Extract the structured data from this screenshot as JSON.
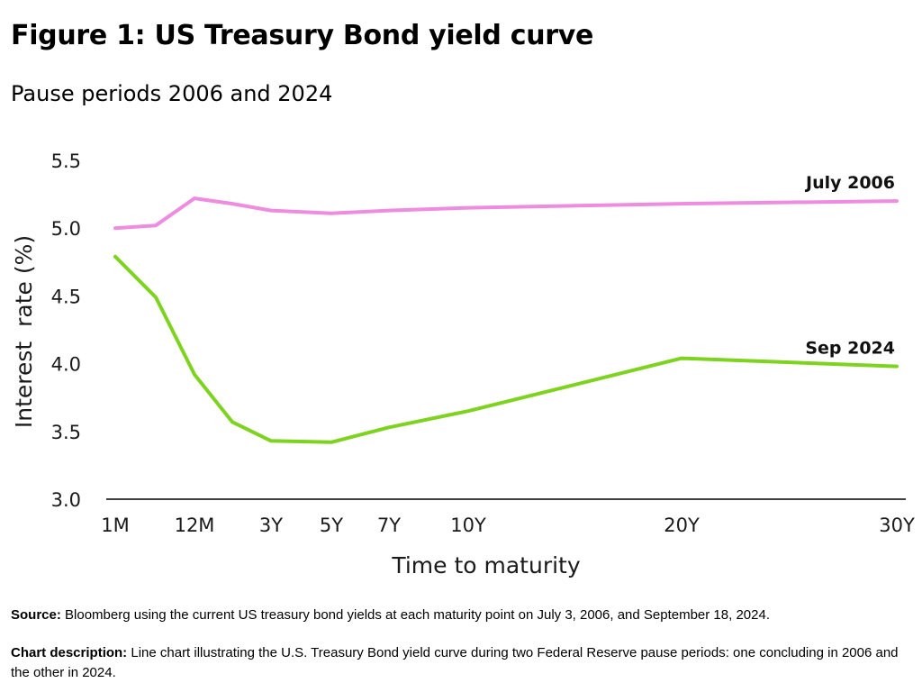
{
  "title": "Figure 1: US Treasury Bond yield curve",
  "subtitle": "Pause periods 2006 and 2024",
  "chart_data": {
    "type": "line",
    "xlabel": "Time to maturity",
    "ylabel": "Interest  rate (%)",
    "ylim": [
      3.0,
      5.5
    ],
    "yticks": [
      3.0,
      3.5,
      4.0,
      4.5,
      5.0,
      5.5
    ],
    "ytick_labels": [
      "3.0",
      "3.5",
      "4.0",
      "4.5",
      "5.0",
      "5.5"
    ],
    "x_months": [
      1,
      6,
      12,
      24,
      36,
      60,
      84,
      120,
      240,
      360
    ],
    "x_tick_labels": [
      "1M",
      "",
      "12M",
      "",
      "3Y",
      "5Y",
      "7Y",
      "10Y",
      "20Y",
      "30Y"
    ],
    "legend": "direct labels at right end of each line",
    "series": [
      {
        "name": "July 2006",
        "color": "#ee8ce0",
        "values": [
          5.0,
          5.02,
          5.22,
          5.18,
          5.13,
          5.11,
          5.13,
          5.15,
          5.18,
          5.2
        ]
      },
      {
        "name": "Sep 2024",
        "color": "#7ed321",
        "values": [
          4.79,
          4.49,
          3.92,
          3.57,
          3.43,
          3.42,
          3.53,
          3.65,
          4.04,
          3.98
        ]
      }
    ]
  },
  "footer": {
    "source_label": "Source:",
    "source_text": " Bloomberg using the current US treasury bond yields at each maturity point on July 3, 2006, and September 18, 2024.",
    "description_label": "Chart description:",
    "description_text": " Line chart illustrating the U.S. Treasury Bond yield curve during two Federal Reserve pause periods: one concluding in 2006 and the other in 2024."
  }
}
